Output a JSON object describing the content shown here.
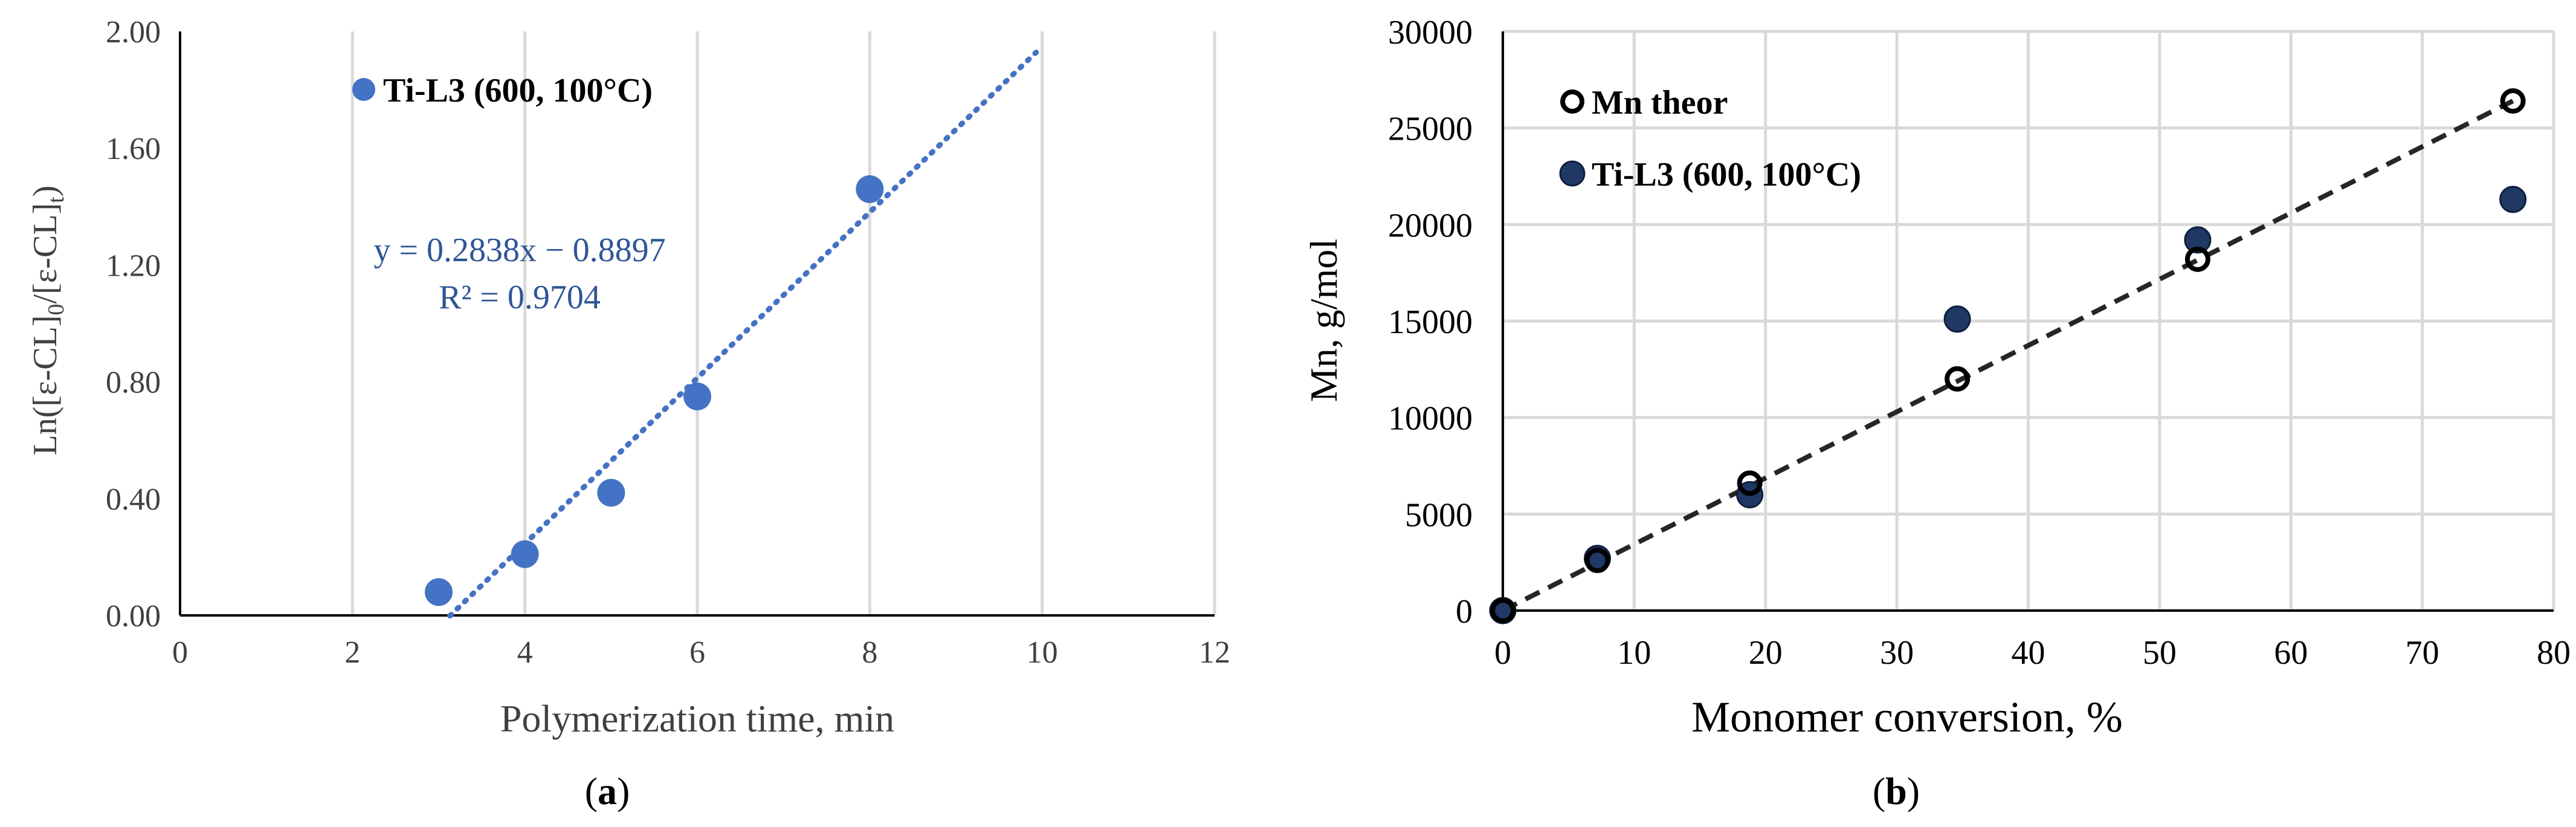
{
  "chart_data": [
    {
      "panel_label": "(a)",
      "type": "scatter",
      "xlabel": "Polymerization time, min",
      "ylabel": "Ln([ε-CL]0/[ε-CL]t)",
      "xlim": [
        0,
        12
      ],
      "ylim": [
        0,
        2.0
      ],
      "xticks": [
        "0",
        "2",
        "4",
        "6",
        "8",
        "10",
        "12"
      ],
      "yticks": [
        "0.00",
        "0.40",
        "0.80",
        "1.20",
        "1.60",
        "2.00"
      ],
      "grid": "vertical",
      "legend_position": "top-left",
      "series": [
        {
          "name": "Ti-L3 (600, 100°C)",
          "color": "#4472c4",
          "x": [
            3,
            4,
            5,
            6,
            8
          ],
          "y": [
            0.08,
            0.21,
            0.42,
            0.75,
            1.46
          ]
        }
      ],
      "trendline": {
        "type": "linear",
        "style": "dotted",
        "color": "#4472c4",
        "slope": 0.2838,
        "intercept": -0.8897,
        "x_range": [
          3.13,
          9.93
        ],
        "equation": "y = 0.2838x − 0.8897",
        "r2": "R² = 0.9704"
      }
    },
    {
      "panel_label": "(b)",
      "type": "scatter",
      "xlabel": "Monomer conversion, %",
      "ylabel": "Mn, g/mol",
      "xlim": [
        0,
        80
      ],
      "ylim": [
        0,
        30000
      ],
      "xticks": [
        "0",
        "10",
        "20",
        "30",
        "40",
        "50",
        "60",
        "70",
        "80"
      ],
      "yticks": [
        "0",
        "5000",
        "10000",
        "15000",
        "20000",
        "25000",
        "30000"
      ],
      "grid": "both",
      "legend_position": "top-left",
      "series": [
        {
          "name": "Mn theor",
          "marker": "open-circle",
          "color": "#000000",
          "x": [
            0,
            7.2,
            18.8,
            34.6,
            52.9,
            76.9
          ],
          "y": [
            0,
            2600,
            6600,
            12000,
            18200,
            26400
          ]
        },
        {
          "name": "Ti-L3 (600, 100°C)",
          "marker": "filled-circle",
          "color": "#1f3864",
          "x": [
            0,
            7.2,
            18.8,
            34.6,
            52.9,
            76.9
          ],
          "y": [
            0,
            2700,
            6000,
            15100,
            19200,
            21300
          ]
        }
      ],
      "trendline": {
        "type": "linear",
        "style": "dashed",
        "color": "#262626",
        "x": [
          0,
          76.9
        ],
        "y": [
          0,
          26400
        ]
      }
    }
  ]
}
